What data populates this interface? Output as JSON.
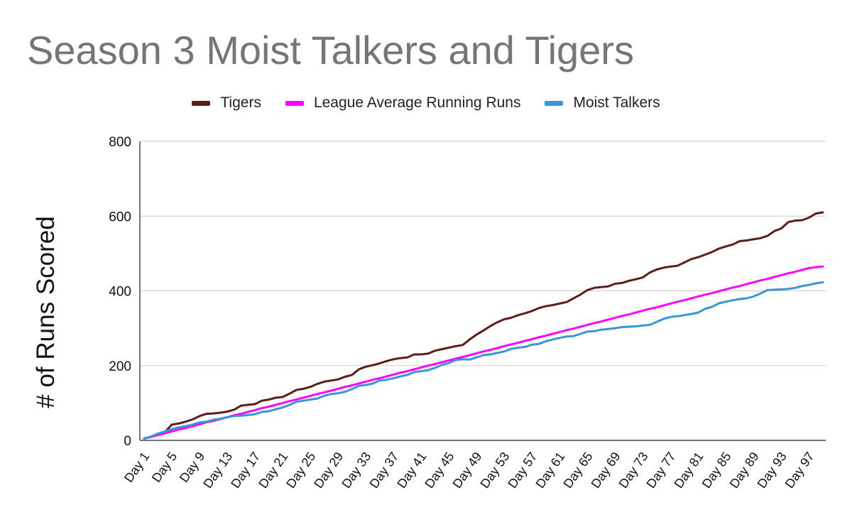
{
  "chart_data": {
    "type": "line",
    "title": "Season 3 Moist Talkers and Tigers",
    "xlabel": "",
    "ylabel": "# of Runs Scored",
    "ylim": [
      0,
      800
    ],
    "yticks": [
      0,
      200,
      400,
      600,
      800
    ],
    "grid": true,
    "legend_position": "top",
    "x_tick_labels": [
      "Day 1",
      "Day 5",
      "Day 9",
      "Day 13",
      "Day 17",
      "Day 21",
      "Day 25",
      "Day 29",
      "Day 33",
      "Day 37",
      "Day 41",
      "Day 45",
      "Day 49",
      "Day 53",
      "Day 57",
      "Day 61",
      "Day 65",
      "Day 69",
      "Day 73",
      "Day 77",
      "Day 81",
      "Day 85",
      "Day 89",
      "Day 93",
      "Day 97"
    ],
    "x_tick_days": [
      1,
      5,
      9,
      13,
      17,
      21,
      25,
      29,
      33,
      37,
      41,
      45,
      49,
      53,
      57,
      61,
      65,
      69,
      73,
      77,
      81,
      85,
      89,
      93,
      97
    ],
    "days": [
      1,
      2,
      3,
      4,
      5,
      6,
      7,
      8,
      9,
      10,
      11,
      12,
      13,
      14,
      15,
      16,
      17,
      18,
      19,
      20,
      21,
      22,
      23,
      24,
      25,
      26,
      27,
      28,
      29,
      30,
      31,
      32,
      33,
      34,
      35,
      36,
      37,
      38,
      39,
      40,
      41,
      42,
      43,
      44,
      45,
      46,
      47,
      48,
      49,
      50,
      51,
      52,
      53,
      54,
      55,
      56,
      57,
      58,
      59,
      60,
      61,
      62,
      63,
      64,
      65,
      66,
      67,
      68,
      69,
      70,
      71,
      72,
      73,
      74,
      75,
      76,
      77,
      78,
      79,
      80,
      81,
      82,
      83,
      84,
      85,
      86,
      87,
      88,
      89,
      90,
      91,
      92,
      93,
      94,
      95,
      96,
      97,
      98,
      99
    ],
    "series": [
      {
        "name": "Tigers",
        "color": "#5b1f1a",
        "values": [
          5,
          10,
          18,
          22,
          42,
          45,
          50,
          56,
          65,
          71,
          72,
          74,
          77,
          82,
          93,
          95,
          97,
          106,
          109,
          114,
          116,
          125,
          135,
          138,
          143,
          151,
          157,
          160,
          163,
          170,
          175,
          190,
          197,
          201,
          206,
          212,
          217,
          220,
          222,
          230,
          230,
          232,
          240,
          244,
          248,
          252,
          255,
          270,
          283,
          294,
          306,
          316,
          324,
          328,
          335,
          340,
          346,
          354,
          359,
          362,
          366,
          370,
          380,
          390,
          402,
          408,
          410,
          412,
          419,
          421,
          427,
          431,
          436,
          449,
          457,
          462,
          465,
          467,
          476,
          485,
          490,
          497,
          504,
          513,
          519,
          524,
          533,
          535,
          538,
          541,
          547,
          560,
          567,
          584,
          588,
          589,
          596,
          607,
          610
        ]
      },
      {
        "name": "League Average Running Runs",
        "color": "#ff00ff",
        "values": [
          5,
          9,
          14,
          19,
          24,
          29,
          33,
          38,
          43,
          48,
          52,
          57,
          62,
          67,
          71,
          76,
          81,
          86,
          90,
          95,
          100,
          105,
          109,
          114,
          119,
          124,
          128,
          133,
          138,
          143,
          147,
          152,
          157,
          162,
          166,
          171,
          176,
          181,
          185,
          190,
          195,
          200,
          204,
          209,
          214,
          219,
          223,
          228,
          233,
          238,
          242,
          247,
          252,
          257,
          261,
          266,
          271,
          276,
          280,
          285,
          290,
          295,
          299,
          304,
          309,
          314,
          318,
          323,
          328,
          333,
          337,
          342,
          347,
          352,
          356,
          361,
          366,
          371,
          375,
          380,
          385,
          390,
          394,
          399,
          404,
          409,
          413,
          418,
          423,
          428,
          432,
          437,
          442,
          447,
          451,
          456,
          461,
          463,
          465
        ]
      },
      {
        "name": "Moist Talkers",
        "color": "#3a96d2",
        "values": [
          5,
          10,
          18,
          24,
          30,
          35,
          38,
          42,
          48,
          50,
          55,
          58,
          62,
          65,
          66,
          68,
          70,
          76,
          78,
          83,
          88,
          95,
          103,
          106,
          109,
          112,
          119,
          124,
          126,
          130,
          137,
          146,
          148,
          152,
          160,
          162,
          166,
          171,
          175,
          183,
          185,
          188,
          194,
          202,
          207,
          215,
          217,
          216,
          222,
          228,
          230,
          234,
          238,
          245,
          248,
          250,
          256,
          258,
          265,
          270,
          274,
          278,
          279,
          285,
          291,
          292,
          296,
          298,
          300,
          303,
          304,
          305,
          307,
          309,
          317,
          325,
          330,
          332,
          335,
          338,
          342,
          352,
          357,
          367,
          371,
          375,
          378,
          380,
          385,
          393,
          402,
          403,
          404,
          405,
          408,
          413,
          416,
          420,
          423
        ]
      }
    ]
  }
}
